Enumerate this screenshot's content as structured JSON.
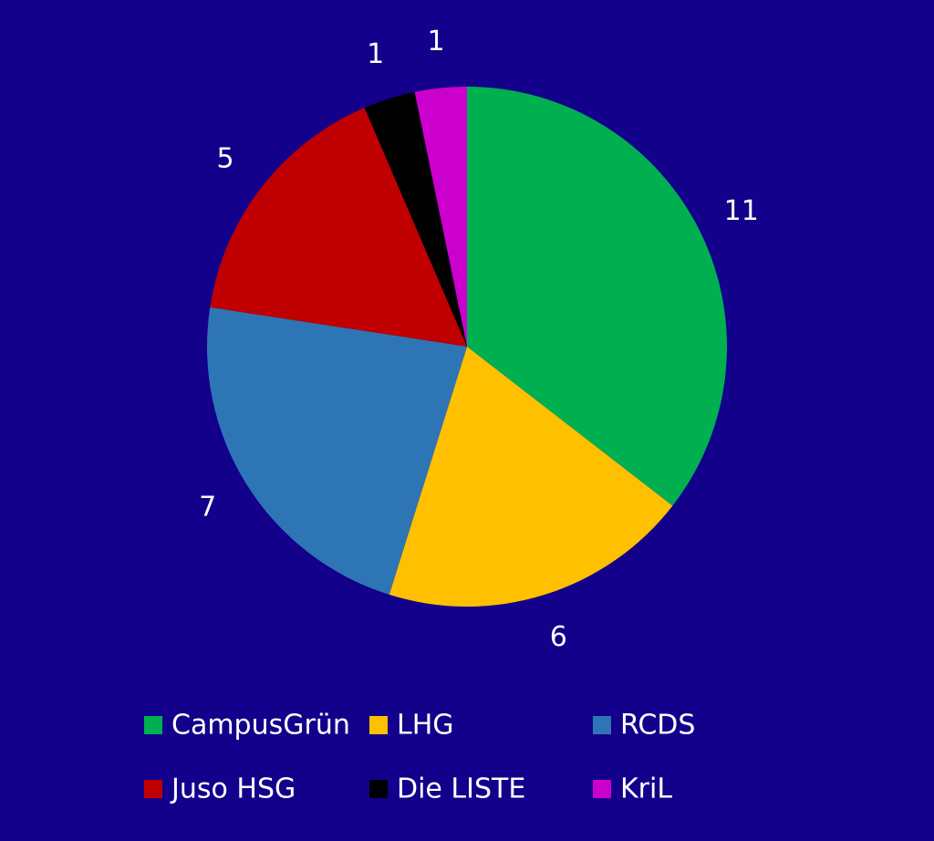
{
  "chart_data": {
    "type": "pie",
    "categories": [
      "CampusGrün",
      "LHG",
      "RCDS",
      "Juso HSG",
      "Die LISTE",
      "KriL"
    ],
    "values": [
      11,
      6,
      7,
      5,
      1,
      1
    ],
    "colors": [
      "#00b050",
      "#ffc000",
      "#2e75b6",
      "#c00000",
      "#000000",
      "#cc00cc"
    ],
    "legend": "bottom"
  }
}
